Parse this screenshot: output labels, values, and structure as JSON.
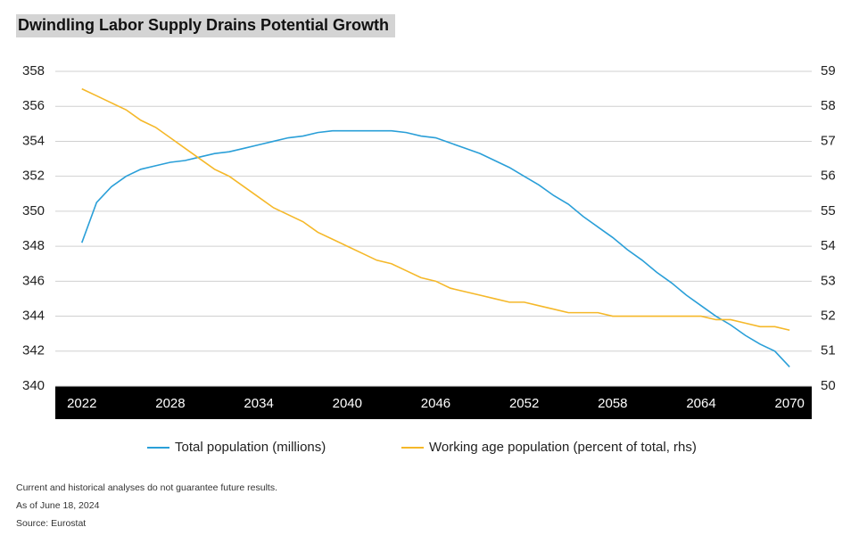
{
  "title": "Dwindling Labor Supply Drains Potential Growth",
  "chart_data": {
    "type": "line",
    "x": [
      2022,
      2023,
      2024,
      2025,
      2026,
      2027,
      2028,
      2029,
      2030,
      2031,
      2032,
      2033,
      2034,
      2035,
      2036,
      2037,
      2038,
      2039,
      2040,
      2041,
      2042,
      2043,
      2044,
      2045,
      2046,
      2047,
      2048,
      2049,
      2050,
      2051,
      2052,
      2053,
      2054,
      2055,
      2056,
      2057,
      2058,
      2059,
      2060,
      2061,
      2062,
      2063,
      2064,
      2065,
      2066,
      2067,
      2068,
      2069,
      2070
    ],
    "series": [
      {
        "name": "Total population (millions)",
        "color": "#2a9fd8",
        "values": [
          348.2,
          350.5,
          351.4,
          352.0,
          352.4,
          352.6,
          352.8,
          352.9,
          353.1,
          353.3,
          353.4,
          353.6,
          353.8,
          354.0,
          354.2,
          354.3,
          354.5,
          354.6,
          354.6,
          354.6,
          354.6,
          354.6,
          354.5,
          354.3,
          354.2,
          353.9,
          353.6,
          353.3,
          352.9,
          352.5,
          352.0,
          351.5,
          350.9,
          350.4,
          349.7,
          349.1,
          348.5,
          347.8,
          347.2,
          346.5,
          345.9,
          345.2,
          344.6,
          344.0,
          343.5,
          342.9,
          342.4,
          342.0,
          341.1
        ]
      },
      {
        "name": "Working age population (percent of total, rhs)",
        "color": "#f5b829",
        "axis": "y2",
        "values": [
          58.5,
          58.3,
          58.1,
          57.9,
          57.6,
          57.4,
          57.1,
          56.8,
          56.5,
          56.2,
          56.0,
          55.7,
          55.4,
          55.1,
          54.9,
          54.7,
          54.4,
          54.2,
          54.0,
          53.8,
          53.6,
          53.5,
          53.3,
          53.1,
          53.0,
          52.8,
          52.7,
          52.6,
          52.5,
          52.4,
          52.4,
          52.3,
          52.2,
          52.1,
          52.1,
          52.1,
          52.0,
          52.0,
          52.0,
          52.0,
          52.0,
          52.0,
          52.0,
          51.9,
          51.9,
          51.8,
          51.7,
          51.7,
          51.6
        ]
      }
    ],
    "xlim": [
      2020.2,
      2071.5
    ],
    "xticks": [
      2022,
      2028,
      2034,
      2040,
      2046,
      2052,
      2058,
      2064,
      2070
    ],
    "ylim": [
      340,
      358
    ],
    "yticks": [
      340,
      342,
      344,
      346,
      348,
      350,
      352,
      354,
      356,
      358
    ],
    "y2lim": [
      50,
      59
    ],
    "y2ticks": [
      50,
      51,
      52,
      53,
      54,
      55,
      56,
      57,
      58,
      59
    ],
    "grid": true
  },
  "footnotes": [
    "Current and historical analyses do not guarantee future results.",
    "As of June 18, 2024",
    "Source: Eurostat"
  ]
}
